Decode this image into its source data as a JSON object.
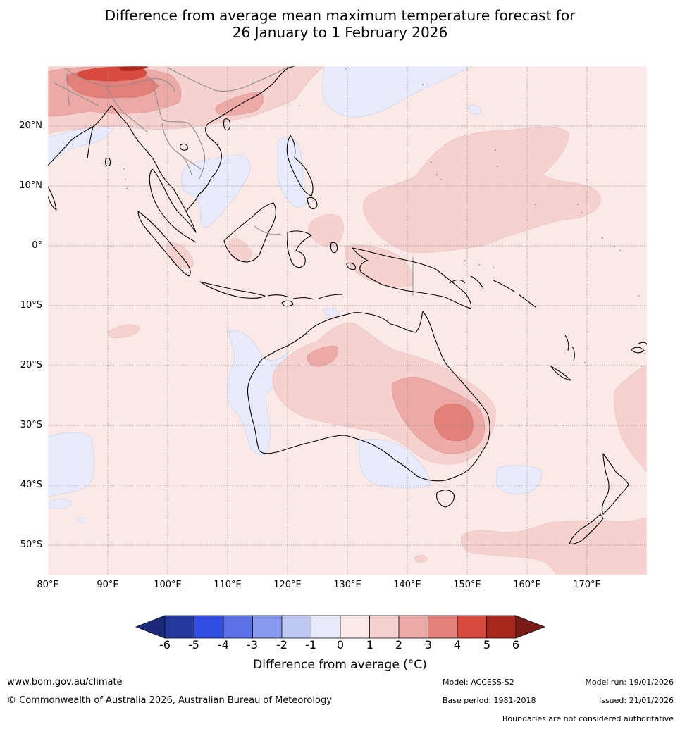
{
  "title": {
    "line1": "Difference from average mean maximum temperature forecast for",
    "line2": "26 January to 1 February 2026"
  },
  "map": {
    "lat_labels": [
      "20°N",
      "10°N",
      "0°",
      "10°S",
      "20°S",
      "30°S",
      "40°S",
      "50°S"
    ],
    "lon_labels": [
      "80°E",
      "90°E",
      "100°E",
      "110°E",
      "120°E",
      "130°E",
      "140°E",
      "150°E",
      "160°E",
      "170°E"
    ]
  },
  "colorbar": {
    "ticks": [
      "-6",
      "-5",
      "-4",
      "-3",
      "-2",
      "-1",
      "0",
      "1",
      "2",
      "3",
      "4",
      "5",
      "6"
    ],
    "colors": [
      "#24389e",
      "#2f4de0",
      "#5b72e6",
      "#8799ee",
      "#c0c8f4",
      "#e8ebfb",
      "#fbe9e7",
      "#f5d2d0",
      "#ecaaa7",
      "#e4807a",
      "#d84b3e",
      "#a9271f"
    ],
    "low_color": "#1b2a78",
    "high_color": "#7a1a16",
    "title": "Difference from average (°C)"
  },
  "footer": {
    "website": "www.bom.gov.au/climate",
    "copyright": "© Commonwealth of Australia 2026, Australian Bureau of Meteorology",
    "model": "Model: ACCESS-S2",
    "base_period": "Base period: 1981-2018",
    "model_run": "Model run: 19/01/2026",
    "issued": "Issued: 21/01/2026",
    "boundaries_note": "Boundaries are not considered authoritative"
  }
}
